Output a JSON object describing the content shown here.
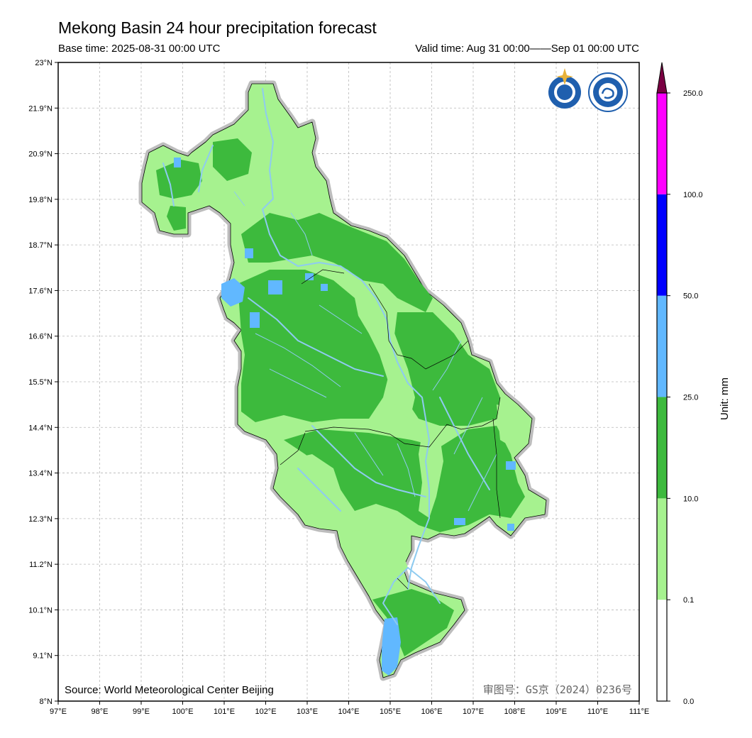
{
  "header": {
    "title": "Mekong Basin 24 hour precipitation forecast",
    "base_time": "Base time: 2025-08-31 00:00 UTC",
    "valid_time": "Valid time: Aug 31 00:00——Sep 01 00:00 UTC"
  },
  "map": {
    "lon_ticks": [
      "97°E",
      "98°E",
      "99°E",
      "100°E",
      "101°E",
      "102°E",
      "103°E",
      "104°E",
      "105°E",
      "106°E",
      "107°E",
      "108°E",
      "109°E",
      "110°E",
      "111°E"
    ],
    "lat_ticks": [
      "23°N",
      "21.9°N",
      "20.9°N",
      "19.8°N",
      "18.7°N",
      "17.6°N",
      "16.6°N",
      "15.5°N",
      "14.4°N",
      "13.4°N",
      "12.3°N",
      "11.2°N",
      "10.1°N",
      "9.1°N",
      "8°N"
    ],
    "source": "Source: World Meteorological Center Beijing",
    "review_no": "审图号：GS京（2024）0236号",
    "logos": [
      "wmo-logo",
      "cma-logo"
    ]
  },
  "legend": {
    "unit": "Unit: mm",
    "levels": [
      "0.0",
      "0.1",
      "10.0",
      "25.0",
      "50.0",
      "100.0",
      "250.0"
    ],
    "colors": [
      "#ffffff",
      "#a6f28f",
      "#3dba3d",
      "#61b8ff",
      "#0000fe",
      "#ff00ff",
      "#7a0042"
    ]
  }
}
